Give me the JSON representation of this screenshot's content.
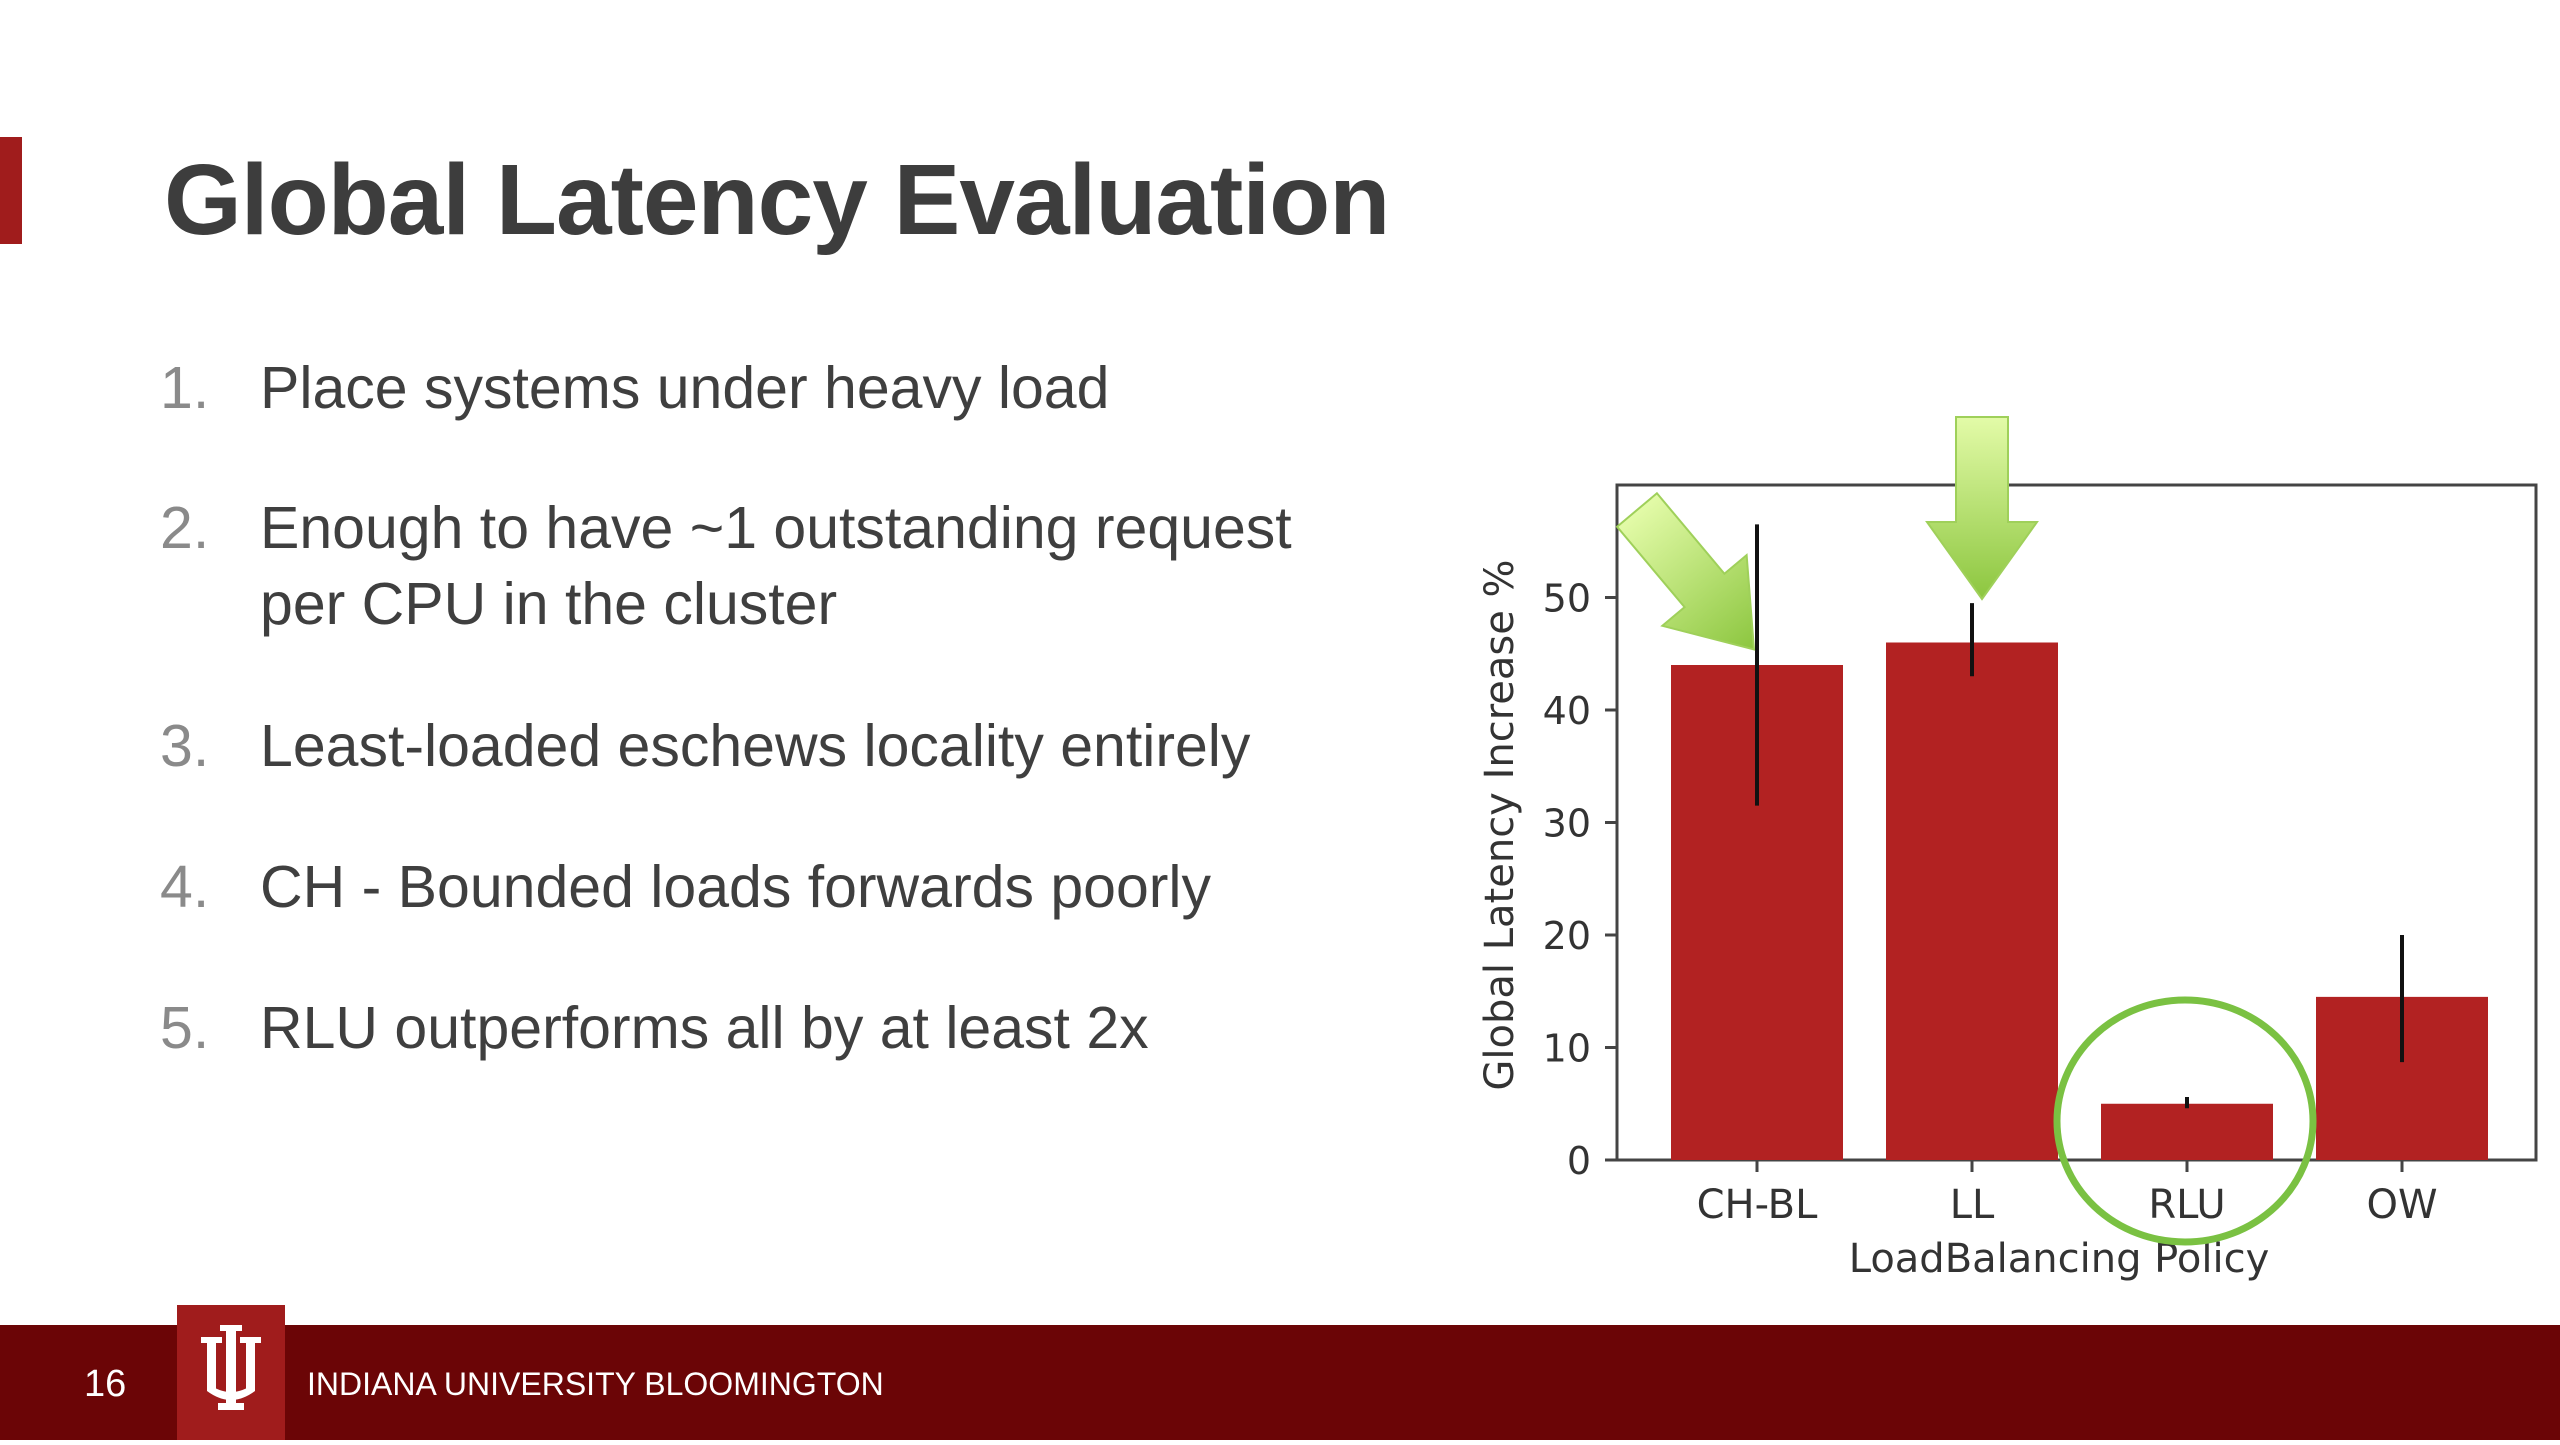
{
  "slide": {
    "title": "Global Latency Evaluation",
    "bullets": [
      {
        "num": "1.",
        "lines": [
          "Place systems under heavy load"
        ]
      },
      {
        "num": "2.",
        "lines": [
          "Enough to have ~1 outstanding request",
          "per CPU in the cluster"
        ]
      },
      {
        "num": "3.",
        "lines": [
          "Least-loaded eschews locality entirely"
        ]
      },
      {
        "num": "4.",
        "lines": [
          "CH - Bounded loads forwards poorly"
        ]
      },
      {
        "num": "5.",
        "lines": [
          "RLU outperforms all by at least 2x"
        ]
      }
    ]
  },
  "footer": {
    "page_number": "16",
    "institution": "INDIANA UNIVERSITY BLOOMINGTON",
    "logo_icon": "iu-trident-logo"
  },
  "colors": {
    "accent": "#a01c1c",
    "footer_bg": "#6b0506",
    "bar": "#b22222",
    "highlight_green": "#7ac142",
    "arrow_light": "#e3fba8",
    "arrow_dark": "#8cc63f"
  },
  "chart_data": {
    "type": "bar",
    "categories": [
      "CH-BL",
      "LL",
      "RLU",
      "OW"
    ],
    "values": [
      44,
      46,
      5,
      14.5
    ],
    "error_low": [
      31.5,
      43,
      4.6,
      8.7
    ],
    "error_high": [
      56.5,
      49.5,
      5.6,
      20
    ],
    "xlabel": "LoadBalancing Policy",
    "ylabel": "Global Latency Increase %",
    "ylim": [
      0,
      60
    ],
    "yticks": [
      0,
      10,
      20,
      30,
      40,
      50
    ],
    "grid": false,
    "annotations": {
      "arrows_point_to": [
        "CH-BL",
        "LL"
      ],
      "circled": "RLU"
    }
  }
}
